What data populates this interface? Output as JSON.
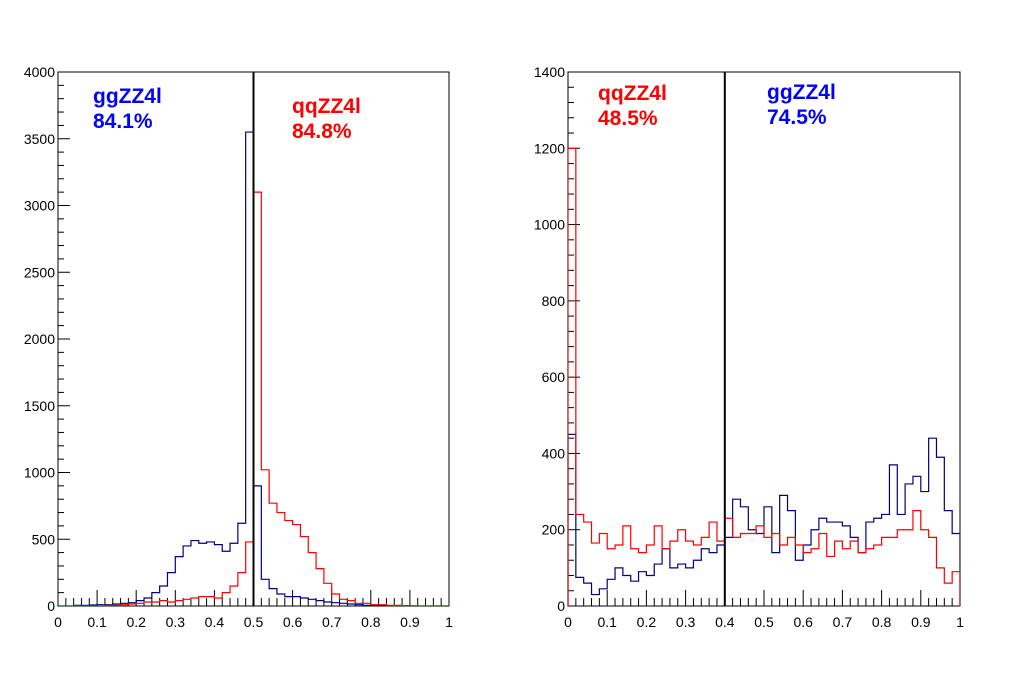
{
  "chart_data": [
    {
      "type": "line",
      "style": "step-histogram",
      "xlim": [
        0,
        1
      ],
      "ylim": [
        0,
        4000
      ],
      "x_ticks": [
        0,
        0.1,
        0.2,
        0.3,
        0.4,
        0.5,
        0.6,
        0.7,
        0.8,
        0.9,
        1
      ],
      "x_tick_labels": [
        "0",
        "0.1",
        "0.2",
        "0.3",
        "0.4",
        "0.5",
        "0.6",
        "0.7",
        "0.8",
        "0.9",
        "1"
      ],
      "y_ticks": [
        0,
        500,
        1000,
        1500,
        2000,
        2500,
        3000,
        3500,
        4000
      ],
      "y_tick_labels": [
        "0",
        "500",
        "1000",
        "1500",
        "2000",
        "2500",
        "3000",
        "3500",
        "4000"
      ],
      "bins": 50,
      "cut_line_x": 0.5,
      "grid": false,
      "series": [
        {
          "color": "#000080",
          "values": [
            0,
            0,
            5,
            5,
            8,
            10,
            10,
            15,
            20,
            25,
            40,
            60,
            100,
            150,
            250,
            370,
            450,
            490,
            470,
            480,
            460,
            410,
            470,
            620,
            3550,
            900,
            200,
            130,
            90,
            70,
            70,
            60,
            50,
            40,
            30,
            25,
            20,
            15,
            10,
            5,
            5,
            3,
            3,
            2,
            2,
            1,
            0,
            0,
            0,
            0
          ]
        },
        {
          "color": "#ff0000",
          "values": [
            0,
            0,
            0,
            0,
            0,
            0,
            5,
            5,
            10,
            15,
            20,
            30,
            30,
            40,
            30,
            40,
            50,
            60,
            70,
            70,
            60,
            100,
            150,
            250,
            480,
            3100,
            1020,
            770,
            700,
            640,
            610,
            520,
            400,
            280,
            170,
            90,
            50,
            40,
            20,
            20,
            10,
            10,
            5,
            5,
            0,
            0,
            0,
            0,
            0,
            0
          ]
        }
      ],
      "annotations": [
        {
          "lines": [
            "ggZZ4l",
            "84.1%"
          ],
          "color": "#0000ff"
        },
        {
          "lines": [
            "qqZZ4l",
            "84.8%"
          ],
          "color": "#ff0000"
        }
      ]
    },
    {
      "type": "line",
      "style": "step-histogram",
      "xlim": [
        0,
        1
      ],
      "ylim": [
        0,
        1400
      ],
      "x_ticks": [
        0,
        0.1,
        0.2,
        0.3,
        0.4,
        0.5,
        0.6,
        0.7,
        0.8,
        0.9,
        1
      ],
      "x_tick_labels": [
        "0",
        "0.1",
        "0.2",
        "0.3",
        "0.4",
        "0.5",
        "0.6",
        "0.7",
        "0.8",
        "0.9",
        "1"
      ],
      "y_ticks": [
        0,
        200,
        400,
        600,
        800,
        1000,
        1200,
        1400
      ],
      "y_tick_labels": [
        "0",
        "200",
        "400",
        "600",
        "800",
        "1000",
        "1200",
        "1400"
      ],
      "bins": 50,
      "cut_line_x": 0.4,
      "grid": false,
      "series": [
        {
          "color": "#000080",
          "values": [
            450,
            75,
            60,
            30,
            45,
            70,
            100,
            80,
            65,
            90,
            80,
            110,
            150,
            100,
            110,
            100,
            120,
            150,
            140,
            160,
            180,
            280,
            260,
            200,
            190,
            260,
            140,
            290,
            250,
            120,
            160,
            200,
            230,
            220,
            220,
            210,
            180,
            140,
            220,
            230,
            240,
            370,
            240,
            320,
            340,
            300,
            440,
            390,
            250,
            190
          ]
        },
        {
          "color": "#ff0000",
          "values": [
            1200,
            240,
            220,
            165,
            190,
            150,
            160,
            210,
            150,
            140,
            160,
            210,
            150,
            170,
            200,
            170,
            160,
            180,
            220,
            170,
            230,
            180,
            190,
            190,
            210,
            180,
            190,
            160,
            180,
            160,
            140,
            150,
            190,
            130,
            170,
            150,
            170,
            140,
            150,
            160,
            180,
            180,
            200,
            200,
            250,
            200,
            180,
            100,
            60,
            90
          ]
        }
      ],
      "annotations": [
        {
          "lines": [
            "qqZZ4l",
            "48.5%"
          ],
          "color": "#ff0000"
        },
        {
          "lines": [
            "ggZZ4l",
            "74.5%"
          ],
          "color": "#0000ff"
        }
      ]
    }
  ]
}
